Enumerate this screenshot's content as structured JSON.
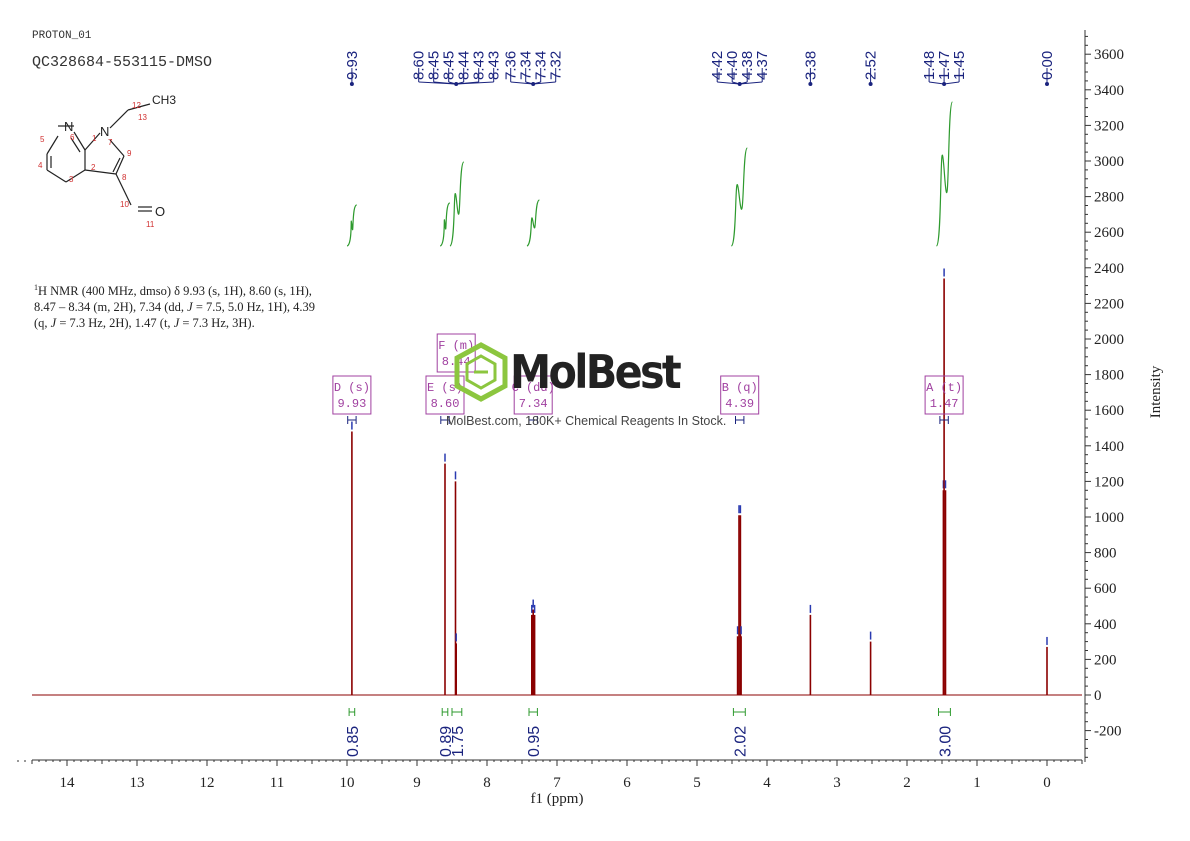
{
  "header": {
    "experiment": "PROTON_01",
    "sample": "QC328684-553115-DMSO"
  },
  "nmr_text": {
    "part1": "H NMR (400 MHz, dmso) δ 9.93 (s, 1H), 8.60 (s, 1H),",
    "part2": "8.47 – 8.34 (m, 2H), 7.34 (dd, ",
    "part3": " = 7.5, 5.0 Hz, 1H), 4.39",
    "part4": "(q, ",
    "part5": " = 7.3 Hz, 2H), 1.47 (t, ",
    "part6": " = 7.3 Hz, 3H).",
    "sup": "1",
    "j": "J"
  },
  "watermark": {
    "brand": "MolBest",
    "tagline": "MolBest.com, 180K+ Chemical Reagents In Stock."
  },
  "structure": {
    "atoms": [
      "N",
      "N",
      "O",
      "CH3"
    ],
    "numbers": [
      "1",
      "2",
      "3",
      "4",
      "5",
      "6",
      "7",
      "8",
      "9",
      "10",
      "11",
      "12",
      "13"
    ]
  },
  "chart_data": {
    "type": "line",
    "xlabel": "f1 (ppm)",
    "ylabel": "Intensity",
    "xlim": [
      14.7,
      -0.5
    ],
    "ylim": [
      -350,
      3700
    ],
    "x_ticks": [
      14,
      13,
      12,
      11,
      10,
      9,
      8,
      7,
      6,
      5,
      4,
      3,
      2,
      1,
      0
    ],
    "y_ticks": [
      3600,
      3400,
      3200,
      3000,
      2800,
      2600,
      2400,
      2200,
      2000,
      1800,
      1600,
      1400,
      1200,
      1000,
      800,
      600,
      400,
      200,
      0,
      -200
    ],
    "peaks": [
      {
        "ppm": 9.93,
        "height": 1480
      },
      {
        "ppm": 8.6,
        "height": 1300
      },
      {
        "ppm": 8.45,
        "height": 1200
      },
      {
        "ppm": 8.44,
        "height": 290
      },
      {
        "ppm": 7.36,
        "height": 450
      },
      {
        "ppm": 7.34,
        "height": 480
      },
      {
        "ppm": 7.32,
        "height": 450
      },
      {
        "ppm": 4.42,
        "height": 330
      },
      {
        "ppm": 4.4,
        "height": 1010
      },
      {
        "ppm": 4.38,
        "height": 1010
      },
      {
        "ppm": 4.37,
        "height": 330
      },
      {
        "ppm": 3.38,
        "height": 450
      },
      {
        "ppm": 2.52,
        "height": 300
      },
      {
        "ppm": 1.48,
        "height": 1150
      },
      {
        "ppm": 1.47,
        "height": 2340
      },
      {
        "ppm": 1.45,
        "height": 1150
      },
      {
        "ppm": 0.0,
        "height": 270
      }
    ],
    "peak_labels": [
      "9.93",
      "8.60",
      "8.45",
      "8.45",
      "8.44",
      "8.43",
      "8.43",
      "7.36",
      "7.34",
      "7.34",
      "7.32",
      "4.42",
      "4.40",
      "4.38",
      "4.37",
      "3.38",
      "2.52",
      "1.48",
      "1.47",
      "1.45",
      "0.00"
    ],
    "multiplets": [
      {
        "letter": "D",
        "type": "(s)",
        "shift": "9.93",
        "ppm": 9.93
      },
      {
        "letter": "E",
        "type": "(s)",
        "shift": "8.60",
        "ppm": 8.6
      },
      {
        "letter": "F",
        "type": "(m)",
        "shift": "8.44",
        "ppm": 8.44
      },
      {
        "letter": "C",
        "type": "(dd)",
        "shift": "7.34",
        "ppm": 7.34
      },
      {
        "letter": "B",
        "type": "(q)",
        "shift": "4.39",
        "ppm": 4.39
      },
      {
        "letter": "A",
        "type": "(t)",
        "shift": "1.47",
        "ppm": 1.47
      }
    ],
    "integrals": [
      {
        "ppm": 9.93,
        "value": "0.85",
        "from": 9.97,
        "to": 9.89
      },
      {
        "ppm": 8.6,
        "value": "0.89",
        "from": 8.64,
        "to": 8.56
      },
      {
        "ppm": 8.44,
        "value": "1.75",
        "from": 8.5,
        "to": 8.36
      },
      {
        "ppm": 7.34,
        "value": "0.95",
        "from": 7.4,
        "to": 7.28
      },
      {
        "ppm": 4.39,
        "value": "2.02",
        "from": 4.48,
        "to": 4.31
      },
      {
        "ppm": 1.47,
        "value": "3.00",
        "from": 1.55,
        "to": 1.38
      }
    ],
    "colors": {
      "spectrum": "#8b0000",
      "integral": "#2e9a2e",
      "peak_label": "#1a237e",
      "multiplet": "#a040a0",
      "axis": "#333333"
    }
  }
}
